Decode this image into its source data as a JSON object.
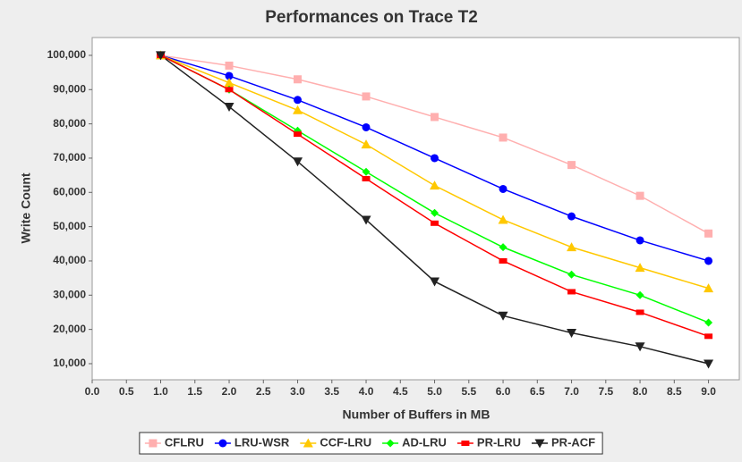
{
  "chart_data": {
    "type": "line",
    "title": "Performances on Trace T2",
    "x_label": "Number of Buffers in MB",
    "y_label": "Write Count",
    "x": [
      1,
      2,
      3,
      4,
      5,
      6,
      7,
      8,
      9
    ],
    "series": [
      {
        "name": "CFLRU",
        "color": "#ffafaf",
        "marker": "square",
        "values": [
          100000,
          97000,
          93000,
          88000,
          82000,
          76000,
          68000,
          59000,
          48000
        ]
      },
      {
        "name": "LRU-WSR",
        "color": "#0000ff",
        "marker": "circle",
        "values": [
          100000,
          94000,
          87000,
          79000,
          70000,
          61000,
          53000,
          46000,
          40000
        ]
      },
      {
        "name": "CCF-LRU",
        "color": "#ffc800",
        "marker": "triangle-up",
        "values": [
          100000,
          92000,
          84000,
          74000,
          62000,
          52000,
          44000,
          38000,
          32000
        ]
      },
      {
        "name": "AD-LRU",
        "color": "#00ff00",
        "marker": "diamond",
        "values": [
          100000,
          90000,
          78000,
          66000,
          54000,
          44000,
          36000,
          30000,
          22000
        ]
      },
      {
        "name": "PR-LRU",
        "color": "#ff0000",
        "marker": "rect",
        "values": [
          100000,
          90000,
          77000,
          64000,
          51000,
          40000,
          31000,
          25000,
          18000
        ]
      },
      {
        "name": "PR-ACF",
        "color": "#222222",
        "marker": "triangle-down",
        "values": [
          100000,
          85000,
          69000,
          52000,
          34000,
          24000,
          19000,
          15000,
          10000
        ]
      }
    ],
    "xlim": [
      0,
      9.45
    ],
    "xticks": [
      {
        "value": 0,
        "label": "0.0"
      },
      0.5,
      {
        "value": 1,
        "label": "1.0"
      },
      1.5,
      {
        "value": 2,
        "label": "2.0"
      },
      2.5,
      {
        "value": 3,
        "label": "3.0"
      },
      3.5,
      {
        "value": 4,
        "label": "4.0"
      },
      4.5,
      {
        "value": 5,
        "label": "5.0"
      },
      5.5,
      {
        "value": 6,
        "label": "6.0"
      },
      6.5,
      {
        "value": 7,
        "label": "7.0"
      },
      7.5,
      {
        "value": 8,
        "label": "8.0"
      },
      8.5,
      {
        "value": 9,
        "label": "9.0"
      }
    ],
    "ylim": [
      5300,
      105200
    ],
    "yticks": [
      {
        "value": 10000,
        "label": "10,000"
      },
      {
        "value": 20000,
        "label": "20,000"
      },
      {
        "value": 30000,
        "label": "30,000"
      },
      {
        "value": 40000,
        "label": "40,000"
      },
      {
        "value": 50000,
        "label": "50,000"
      },
      {
        "value": 60000,
        "label": "60,000"
      },
      {
        "value": 70000,
        "label": "70,000"
      },
      {
        "value": 80000,
        "label": "80,000"
      },
      {
        "value": 90000,
        "label": "90,000"
      },
      {
        "value": 100000,
        "label": "100,000"
      }
    ],
    "grid": false,
    "legend": "bottom"
  }
}
